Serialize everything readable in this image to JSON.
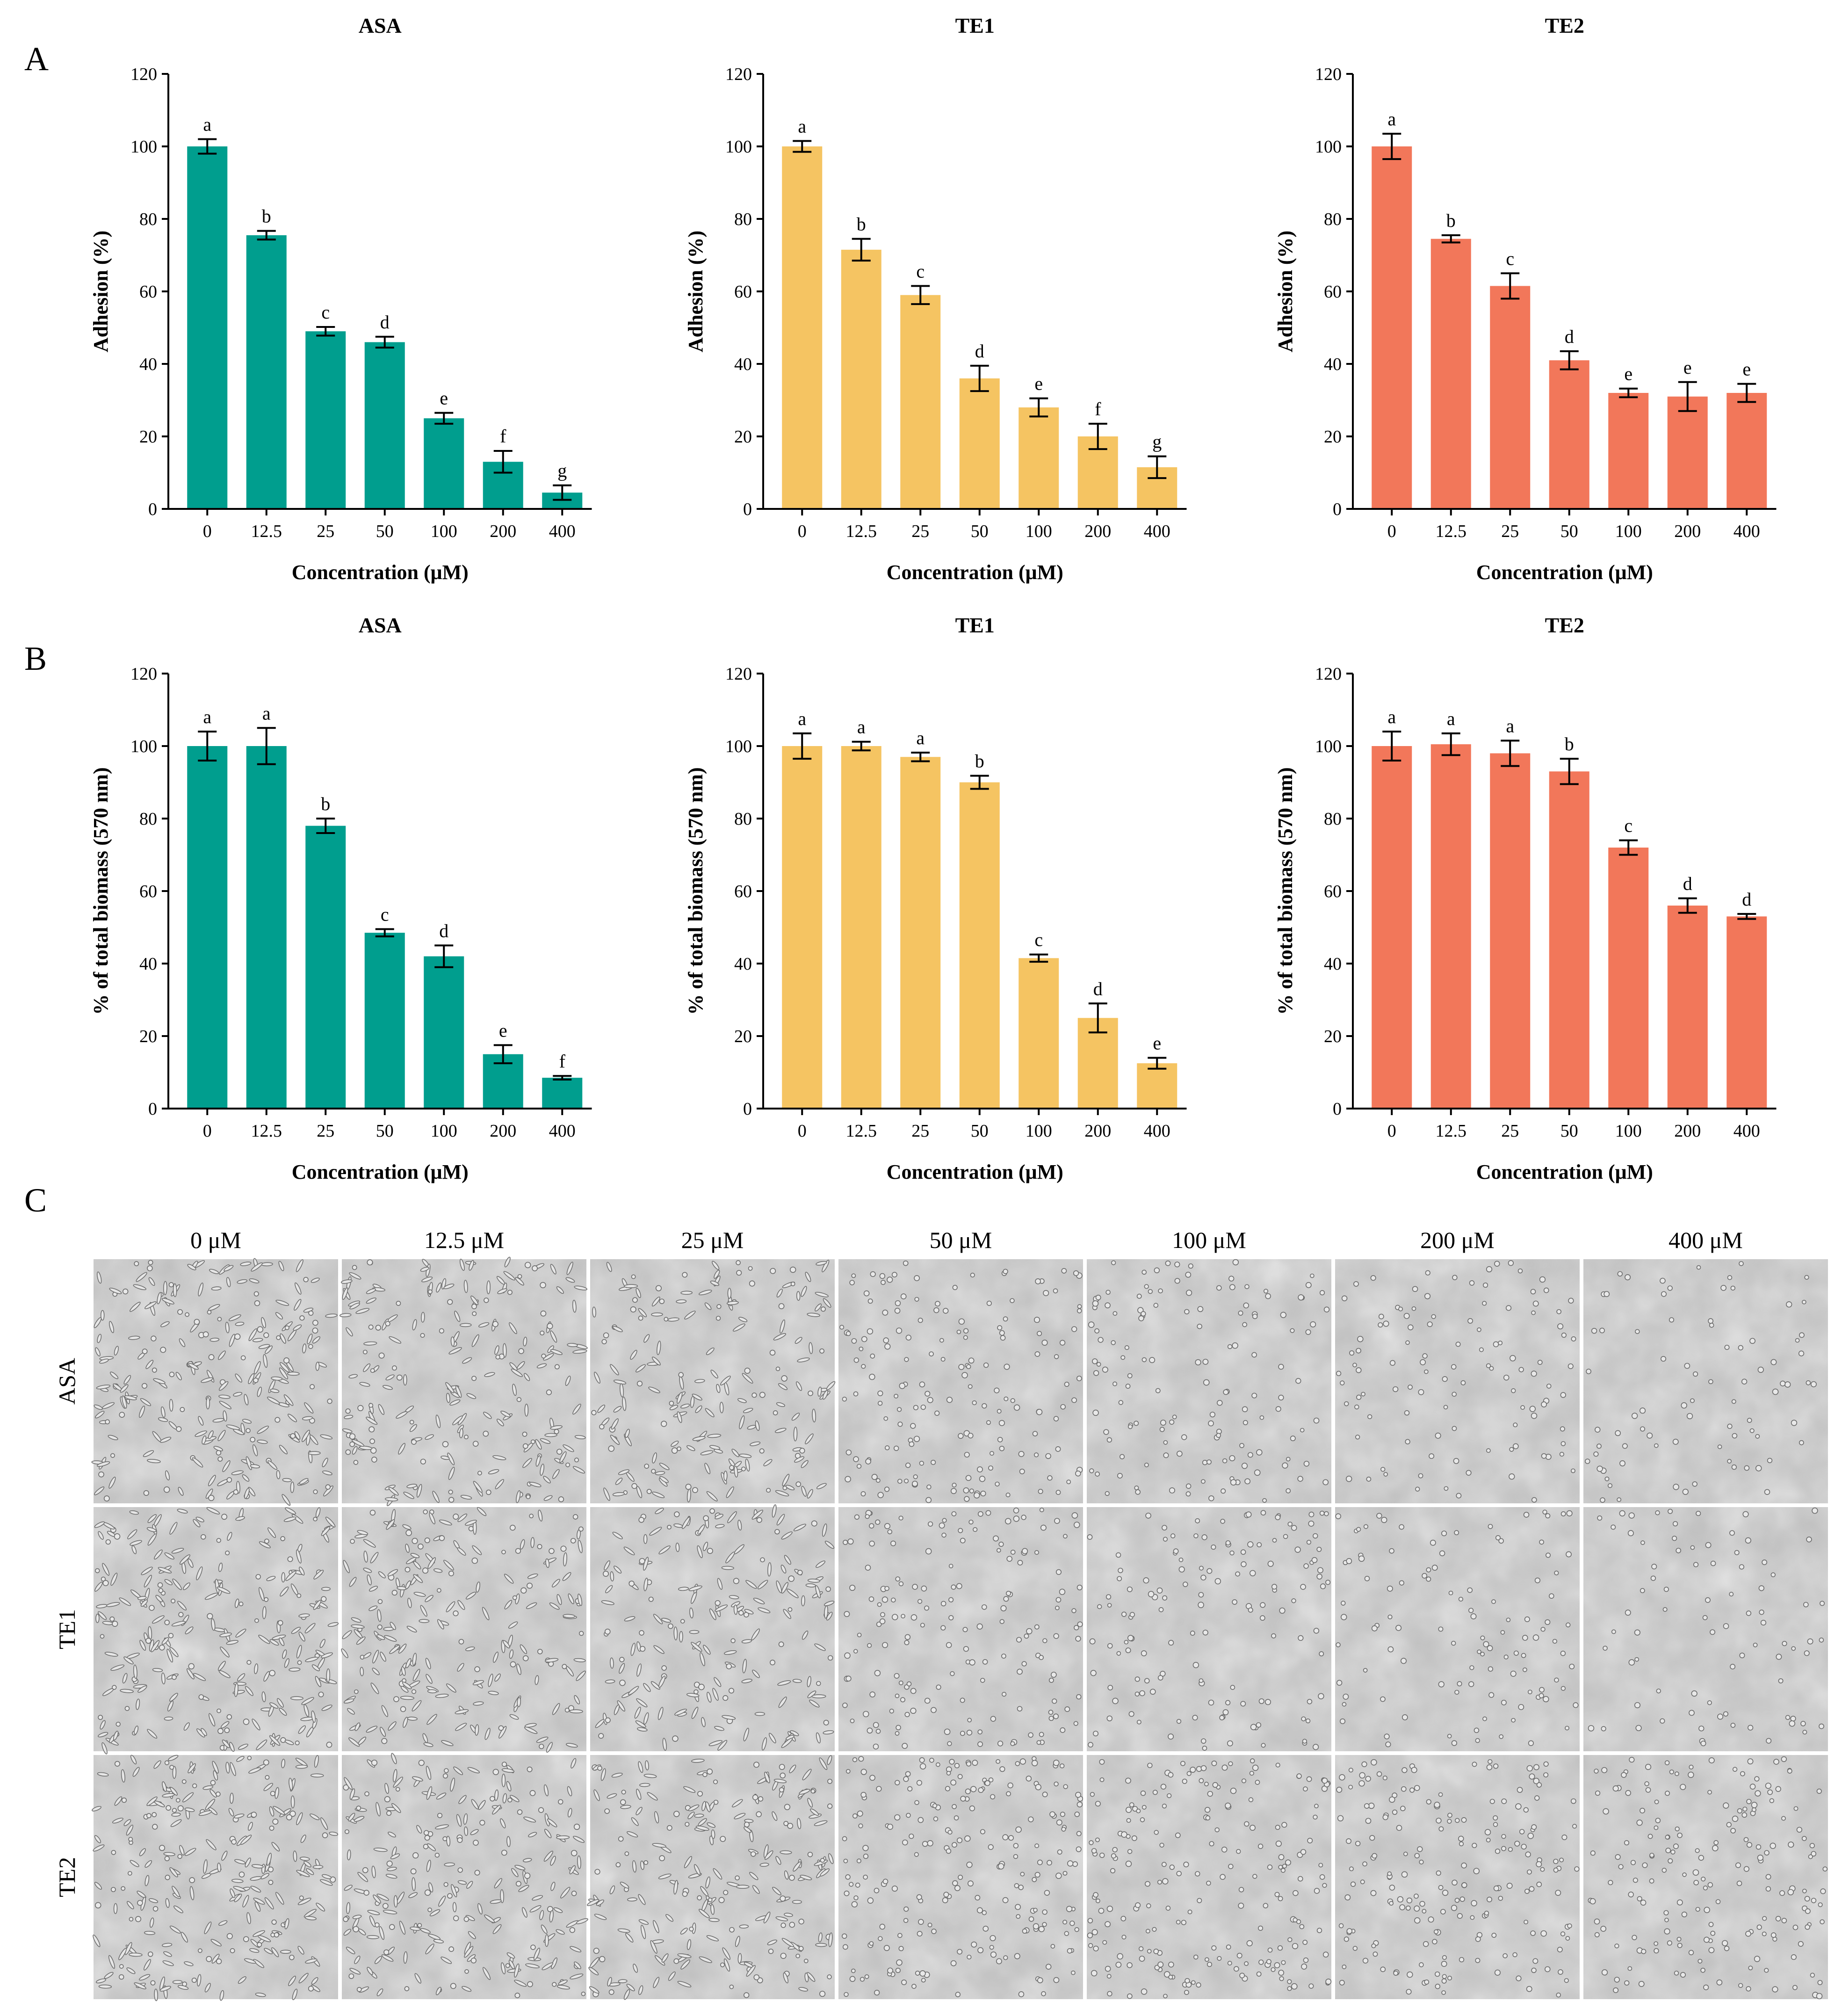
{
  "panel_labels": [
    "A",
    "B",
    "C"
  ],
  "colors": {
    "ASA": "#009E8E",
    "TE1": "#F5C462",
    "TE2": "#F2775A",
    "axis": "#000000"
  },
  "chart_data": [
    {
      "id": "A-ASA",
      "type": "bar",
      "title": "ASA",
      "xlabel": "Concentration (μM)",
      "ylabel": "Adhesion (%)",
      "categories": [
        "0",
        "12.5",
        "25",
        "50",
        "100",
        "200",
        "400"
      ],
      "values": [
        100,
        75.5,
        49,
        46,
        25,
        13,
        4.5
      ],
      "errors": [
        2,
        1.2,
        1.2,
        1.5,
        1.5,
        3,
        2
      ],
      "significance": [
        "a",
        "b",
        "c",
        "d",
        "e",
        "f",
        "g"
      ],
      "ylim": [
        0,
        120
      ],
      "yticks": [
        0,
        20,
        40,
        60,
        80,
        100,
        120
      ],
      "color": "#009E8E"
    },
    {
      "id": "A-TE1",
      "type": "bar",
      "title": "TE1",
      "xlabel": "Concentration (μM)",
      "ylabel": "Adhesion (%)",
      "categories": [
        "0",
        "12.5",
        "25",
        "50",
        "100",
        "200",
        "400"
      ],
      "values": [
        100,
        71.5,
        59,
        36,
        28,
        20,
        11.5
      ],
      "errors": [
        1.5,
        3,
        2.5,
        3.5,
        2.5,
        3.5,
        3
      ],
      "significance": [
        "a",
        "b",
        "c",
        "d",
        "e",
        "f",
        "g"
      ],
      "ylim": [
        0,
        120
      ],
      "yticks": [
        0,
        20,
        40,
        60,
        80,
        100,
        120
      ],
      "color": "#F5C462"
    },
    {
      "id": "A-TE2",
      "type": "bar",
      "title": "TE2",
      "xlabel": "Concentration (μM)",
      "ylabel": "Adhesion (%)",
      "categories": [
        "0",
        "12.5",
        "25",
        "50",
        "100",
        "200",
        "400"
      ],
      "values": [
        100,
        74.5,
        61.5,
        41,
        32,
        31,
        32
      ],
      "errors": [
        3.5,
        1,
        3.5,
        2.5,
        1.2,
        4,
        2.5
      ],
      "significance": [
        "a",
        "b",
        "c",
        "d",
        "e",
        "e",
        "e"
      ],
      "ylim": [
        0,
        120
      ],
      "yticks": [
        0,
        20,
        40,
        60,
        80,
        100,
        120
      ],
      "color": "#F2775A"
    },
    {
      "id": "B-ASA",
      "type": "bar",
      "title": "ASA",
      "xlabel": "Concentration (μM)",
      "ylabel": "% of total biomass (570 nm)",
      "categories": [
        "0",
        "12.5",
        "25",
        "50",
        "100",
        "200",
        "400"
      ],
      "values": [
        100,
        100,
        78,
        48.5,
        42,
        15,
        8.5
      ],
      "errors": [
        4,
        5,
        2,
        1,
        3,
        2.5,
        0.5
      ],
      "significance": [
        "a",
        "a",
        "b",
        "c",
        "d",
        "e",
        "f"
      ],
      "ylim": [
        0,
        120
      ],
      "yticks": [
        0,
        20,
        40,
        60,
        80,
        100,
        120
      ],
      "color": "#009E8E"
    },
    {
      "id": "B-TE1",
      "type": "bar",
      "title": "TE1",
      "xlabel": "Concentration (μM)",
      "ylabel": "% of total biomass (570 nm)",
      "categories": [
        "0",
        "12.5",
        "25",
        "50",
        "100",
        "200",
        "400"
      ],
      "values": [
        100,
        100,
        97,
        90,
        41.5,
        25,
        12.5
      ],
      "errors": [
        3.5,
        1.2,
        1.2,
        1.8,
        1,
        4,
        1.5
      ],
      "significance": [
        "a",
        "a",
        "a",
        "b",
        "c",
        "d",
        "e"
      ],
      "ylim": [
        0,
        120
      ],
      "yticks": [
        0,
        20,
        40,
        60,
        80,
        100,
        120
      ],
      "color": "#F5C462"
    },
    {
      "id": "B-TE2",
      "type": "bar",
      "title": "TE2",
      "xlabel": "Concentration (μM)",
      "ylabel": "% of total biomass (570 nm)",
      "categories": [
        "0",
        "12.5",
        "25",
        "50",
        "100",
        "200",
        "400"
      ],
      "values": [
        100,
        100.5,
        98,
        93,
        72,
        56,
        53
      ],
      "errors": [
        4,
        3,
        3.5,
        3.5,
        2,
        2,
        0.7
      ],
      "significance": [
        "a",
        "a",
        "a",
        "b",
        "c",
        "d",
        "d"
      ],
      "ylim": [
        0,
        120
      ],
      "yticks": [
        0,
        20,
        40,
        60,
        80,
        100,
        120
      ],
      "color": "#F2775A"
    }
  ],
  "micrographs": {
    "column_labels": [
      "0 μM",
      "12.5 μM",
      "25 μM",
      "50 μM",
      "100 μM",
      "200 μM",
      "400 μM"
    ],
    "row_labels": [
      "ASA",
      "TE1",
      "TE2"
    ]
  }
}
